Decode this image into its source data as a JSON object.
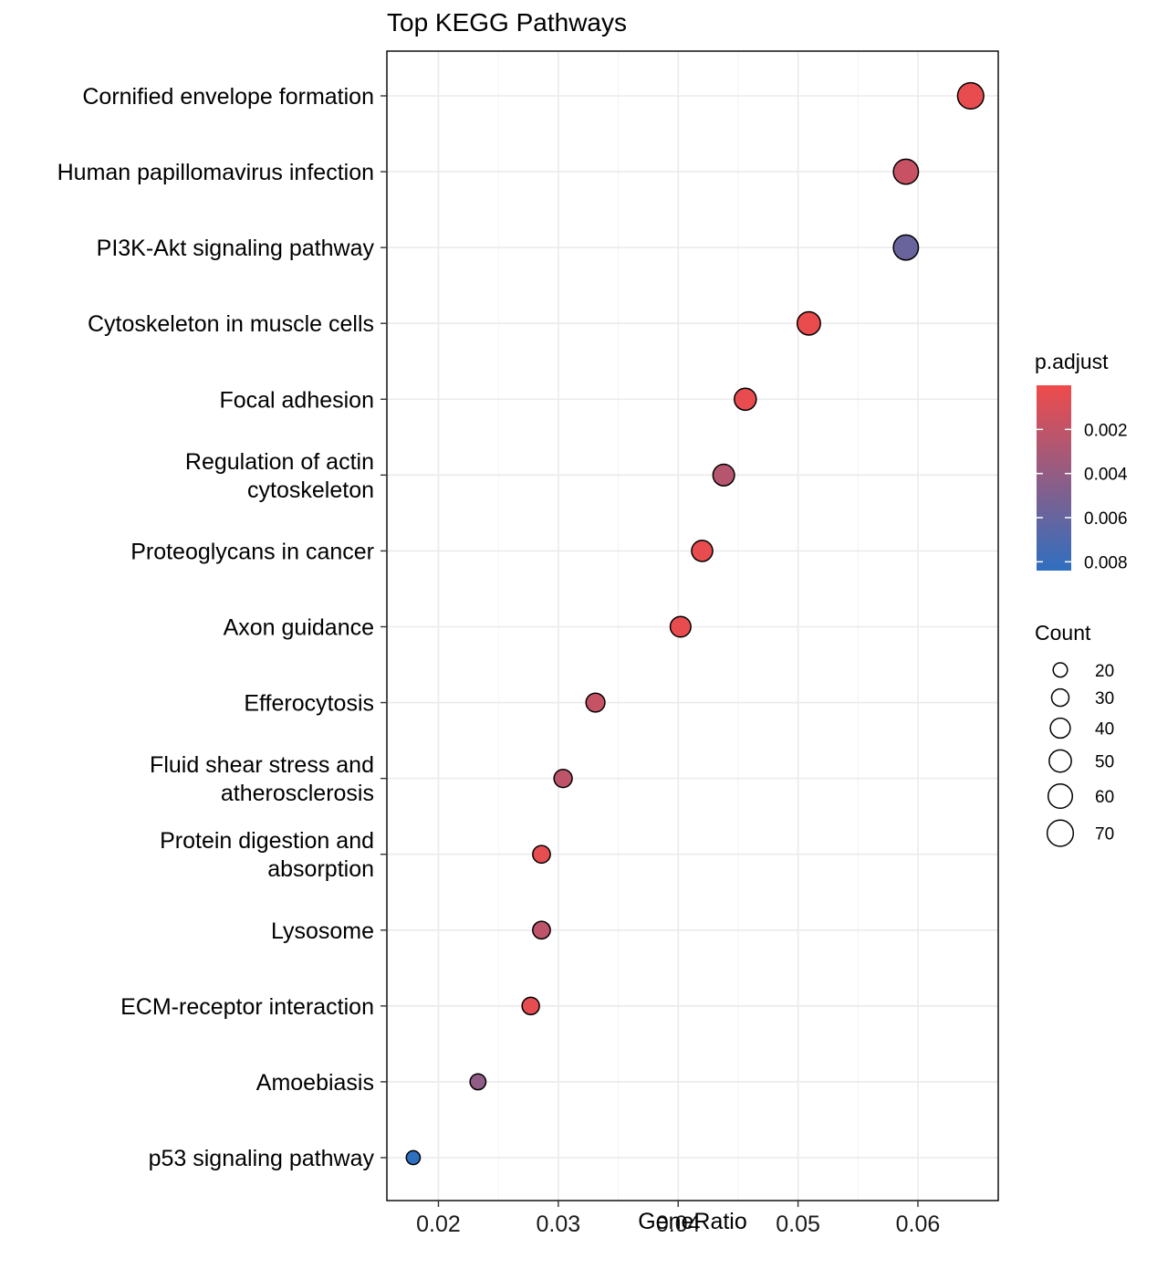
{
  "chart_data": {
    "type": "scatter",
    "title": "Top KEGG Pathways",
    "xlabel": "GeneRatio",
    "ylabel": "",
    "xlim": [
      0.0157,
      0.0667
    ],
    "xticks": [
      "0.02",
      "0.03",
      "0.04",
      "0.05",
      "0.06"
    ],
    "xtick_values": [
      0.02,
      0.03,
      0.04,
      0.05,
      0.06
    ],
    "grid": true,
    "points": [
      {
        "label": "Cornified envelope formation",
        "lines": [
          "Cornified envelope formation"
        ],
        "x": 0.0644,
        "count": 70,
        "p_adjust": 0.0003
      },
      {
        "label": "Human papillomavirus infection",
        "lines": [
          "Human papillomavirus infection"
        ],
        "x": 0.059,
        "count": 64,
        "p_adjust": 0.0017
      },
      {
        "label": "PI3K-Akt signaling pathway",
        "lines": [
          "PI3K-Akt signaling pathway"
        ],
        "x": 0.059,
        "count": 64,
        "p_adjust": 0.0058
      },
      {
        "label": "Cytoskeleton in muscle cells",
        "lines": [
          "Cytoskeleton in muscle cells"
        ],
        "x": 0.0509,
        "count": 55,
        "p_adjust": 0.0002
      },
      {
        "label": "Focal adhesion",
        "lines": [
          "Focal adhesion"
        ],
        "x": 0.0456,
        "count": 49,
        "p_adjust": 0.0003
      },
      {
        "label": "Regulation of actin cytoskeleton",
        "lines": [
          "Regulation of actin",
          "cytoskeleton"
        ],
        "x": 0.0438,
        "count": 47,
        "p_adjust": 0.0025
      },
      {
        "label": "Proteoglycans in cancer",
        "lines": [
          "Proteoglycans in cancer"
        ],
        "x": 0.042,
        "count": 45,
        "p_adjust": 0.0003
      },
      {
        "label": "Axon guidance",
        "lines": [
          "Axon guidance"
        ],
        "x": 0.0402,
        "count": 43,
        "p_adjust": 0.0003
      },
      {
        "label": "Efferocytosis",
        "lines": [
          "Efferocytosis"
        ],
        "x": 0.0331,
        "count": 36,
        "p_adjust": 0.0018
      },
      {
        "label": "Fluid shear stress and atherosclerosis",
        "lines": [
          "Fluid shear stress and",
          "atherosclerosis"
        ],
        "x": 0.0304,
        "count": 33,
        "p_adjust": 0.0022
      },
      {
        "label": "Protein digestion and absorption",
        "lines": [
          "Protein digestion and",
          "absorption"
        ],
        "x": 0.0286,
        "count": 31,
        "p_adjust": 0.0004
      },
      {
        "label": "Lysosome",
        "lines": [
          "Lysosome"
        ],
        "x": 0.0286,
        "count": 31,
        "p_adjust": 0.0022
      },
      {
        "label": "ECM-receptor interaction",
        "lines": [
          "ECM-receptor interaction"
        ],
        "x": 0.0277,
        "count": 30,
        "p_adjust": 0.0004
      },
      {
        "label": "Amoebiasis",
        "lines": [
          "Amoebiasis"
        ],
        "x": 0.0233,
        "count": 25,
        "p_adjust": 0.0042
      },
      {
        "label": "p53 signaling pathway",
        "lines": [
          "p53 signaling pathway"
        ],
        "x": 0.0179,
        "count": 19,
        "p_adjust": 0.0085
      }
    ],
    "color_legend": {
      "title": "p.adjust",
      "labels": [
        "0.002",
        "0.004",
        "0.006",
        "0.008"
      ],
      "values": [
        0.002,
        0.004,
        0.006,
        0.008
      ],
      "range": [
        0.0,
        0.0084
      ],
      "low_color": "#ef4b4b",
      "high_color": "#2f6fc0"
    },
    "size_legend": {
      "title": "Count",
      "labels": [
        "20",
        "30",
        "40",
        "50",
        "60",
        "70"
      ],
      "values": [
        20,
        30,
        40,
        50,
        60,
        70
      ]
    },
    "legend_position": "right"
  }
}
